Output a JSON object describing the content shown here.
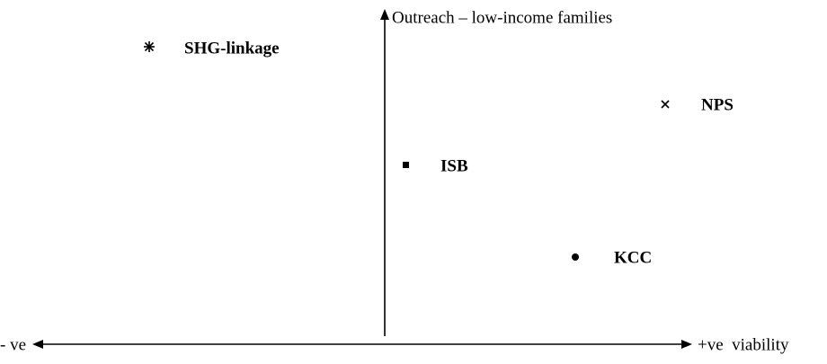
{
  "axes": {
    "y_label": "Outreach – low-income families",
    "x_left_label": "- ve",
    "x_right_label": "+ve  viability"
  },
  "points": [
    {
      "label": "SHG-linkage"
    },
    {
      "label": "NPS"
    },
    {
      "label": "ISB"
    },
    {
      "label": "KCC"
    }
  ]
}
